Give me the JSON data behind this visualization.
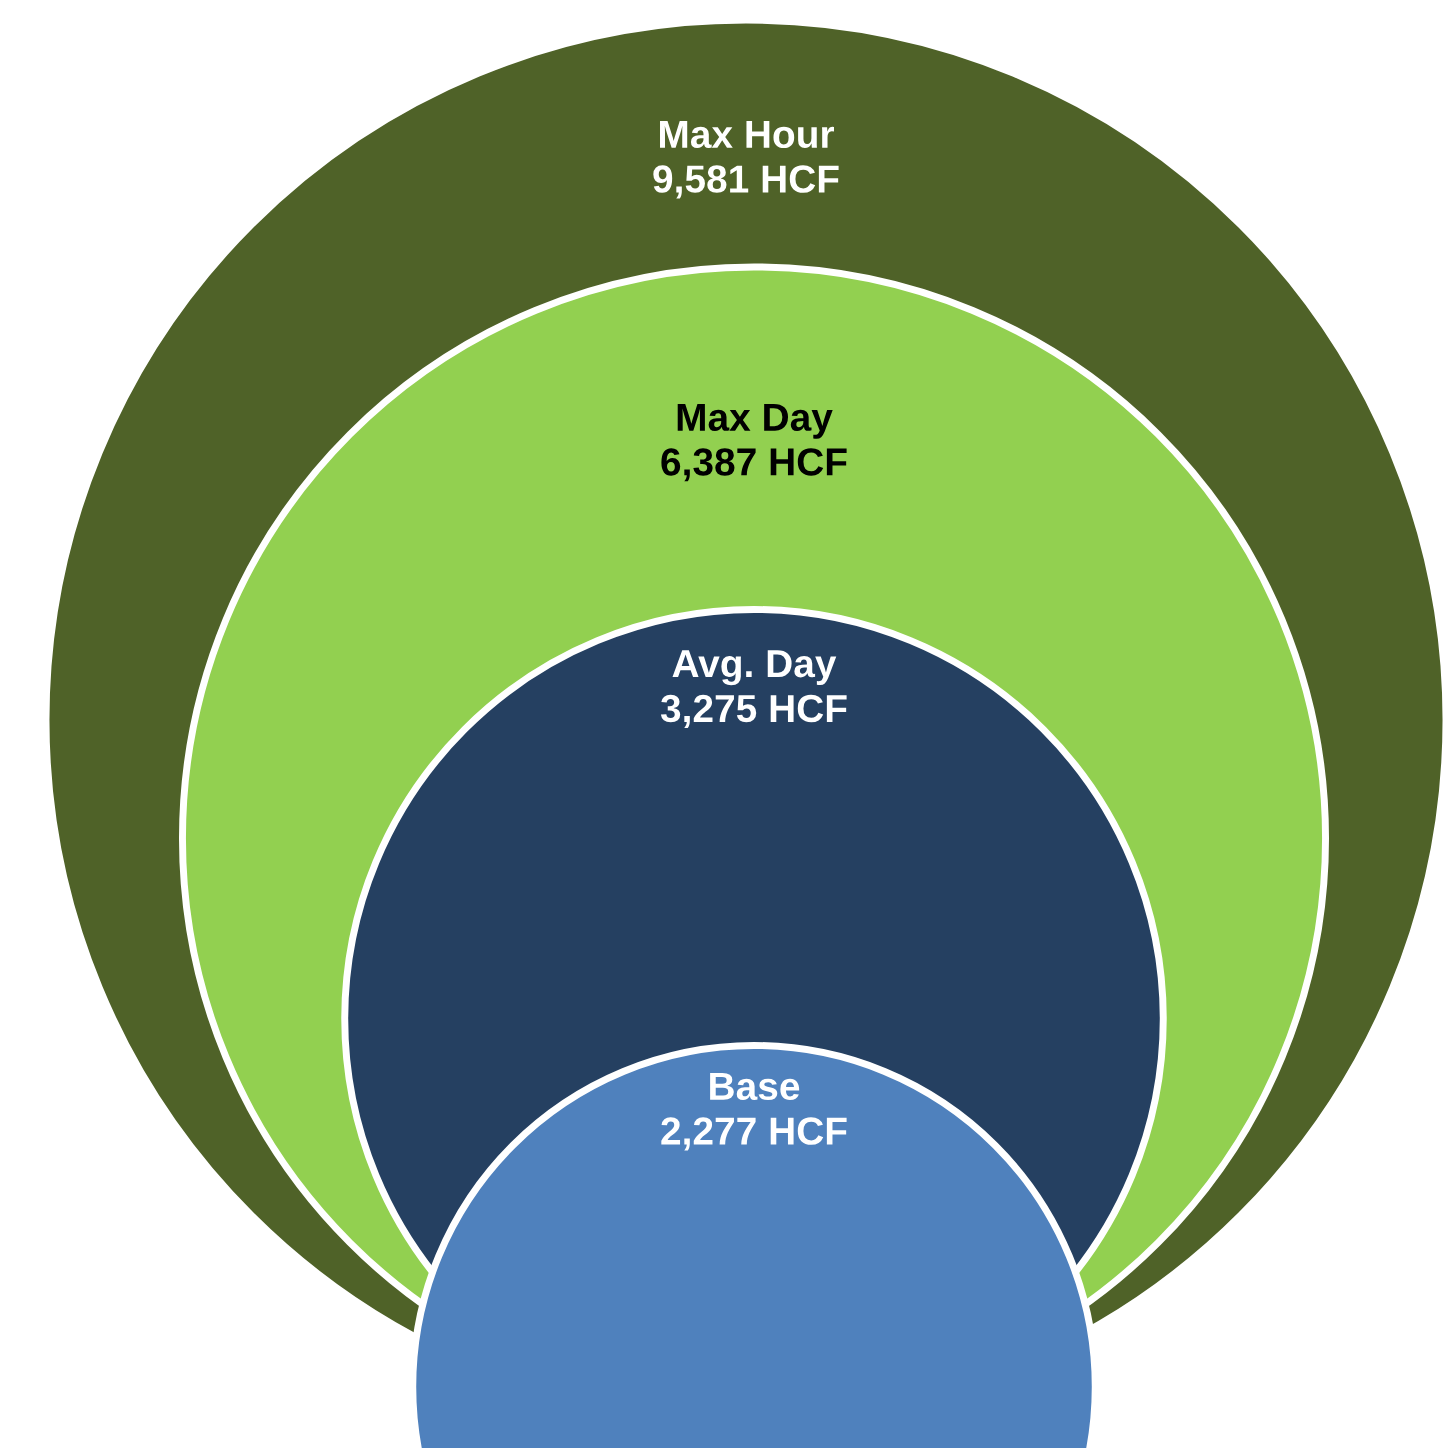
{
  "chart_data": {
    "type": "other",
    "categories": [
      "Max Hour",
      "Max Day",
      "Avg. Day",
      "Base"
    ],
    "values": [
      9581,
      6387,
      3275,
      2277
    ],
    "value_labels": [
      "9,581 HCF",
      "6,387 HCF",
      "3,275 HCF",
      "2,277 HCF"
    ],
    "colors": [
      "#4f6228",
      "#92d050",
      "#254061",
      "#4f81bd"
    ]
  }
}
